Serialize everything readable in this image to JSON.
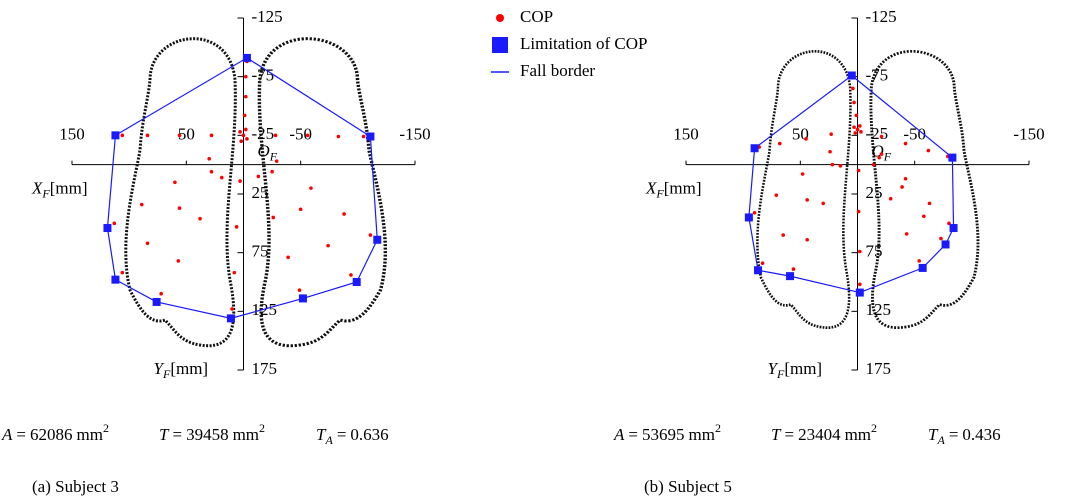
{
  "chart_data": [
    {
      "type": "scatter",
      "title": "(a) Subject 3",
      "x_label": {
        "symbol": "X",
        "sub": "F",
        "unit": "[mm]"
      },
      "y_label": {
        "symbol": "Y",
        "sub": "F",
        "unit": "[mm]"
      },
      "origin_label": {
        "symbol": "O",
        "sub": "F"
      },
      "xlim": [
        150,
        -150
      ],
      "xticks": [
        150,
        50,
        -50,
        -150
      ],
      "ylim": [
        -125,
        175
      ],
      "yticks": [
        -125,
        -75,
        -25,
        25,
        75,
        125,
        175
      ],
      "metrics": [
        {
          "symbol": "A",
          "equals": "=",
          "value": 62086,
          "unit": "mm",
          "power": "2"
        },
        {
          "symbol": "T",
          "equals": "=",
          "value": 39458,
          "unit": "mm",
          "power": "2"
        },
        {
          "symbol": "T",
          "sub": "A",
          "equals": "=",
          "value": 0.636
        }
      ],
      "series": [
        {
          "name": "COP",
          "kind": "dot",
          "color": "#ff0000",
          "x": [
            -1,
            -2,
            -2,
            -3,
            -28,
            -56,
            -83,
            -105,
            -29,
            -59,
            -88,
            -111,
            -25,
            -50,
            -74,
            -94,
            -13,
            -26,
            -39,
            -49,
            3,
            6,
            8,
            10,
            19,
            38,
            57,
            72,
            28,
            56,
            84,
            106,
            30,
            60,
            89,
            113,
            28,
            56,
            84,
            106,
            0,
            3,
            -3,
            2,
            -2
          ],
          "values": [
            -42,
            -58,
            -75,
            -88,
            -25,
            -25,
            -24,
            -24,
            -3,
            20,
            42,
            60,
            6,
            38,
            69,
            94,
            10,
            45,
            79,
            107,
            14,
            53,
            92,
            123,
            11,
            46,
            82,
            110,
            6,
            37,
            67,
            92,
            -5,
            15,
            34,
            50,
            -25,
            -25,
            -25,
            -25,
            -25,
            -28,
            -22,
            -20,
            -30
          ]
        },
        {
          "name": "Limitation of COP",
          "kind": "square",
          "color": "#1a1aff",
          "x": [
            -3,
            -111,
            -117,
            -99,
            -52,
            11,
            76,
            112,
            119,
            112
          ],
          "values": [
            -91,
            -24,
            64,
            100,
            114,
            131,
            117,
            98,
            54,
            -25
          ]
        },
        {
          "name": "Fall border",
          "kind": "polygon",
          "color": "#1a1aff",
          "x": [
            -3,
            -111,
            -117,
            -99,
            -52,
            11,
            76,
            112,
            119,
            112
          ],
          "values": [
            -91,
            -24,
            64,
            100,
            114,
            131,
            117,
            98,
            54,
            -25
          ]
        }
      ]
    },
    {
      "type": "scatter",
      "title": "(b) Subject 5",
      "x_label": {
        "symbol": "X",
        "sub": "F",
        "unit": "[mm]"
      },
      "y_label": {
        "symbol": "Y",
        "sub": "F",
        "unit": "[mm]"
      },
      "origin_label": {
        "symbol": "O",
        "sub": "F"
      },
      "xlim": [
        150,
        -150
      ],
      "xticks": [
        150,
        50,
        -50,
        -150
      ],
      "ylim": [
        -125,
        175
      ],
      "yticks": [
        -125,
        -75,
        -25,
        25,
        75,
        125,
        175
      ],
      "metrics": [
        {
          "symbol": "A",
          "equals": "=",
          "value": 53695,
          "unit": "mm",
          "power": "2"
        },
        {
          "symbol": "T",
          "equals": "=",
          "value": 23404,
          "unit": "mm",
          "power": "2"
        },
        {
          "symbol": "T",
          "sub": "A",
          "equals": "=",
          "value": 0.436
        }
      ],
      "series": [
        {
          "kind": "dot",
          "color": "#ff0000",
          "x": [
            1,
            3,
            4,
            5,
            -21,
            -42,
            -62,
            -79,
            -21,
            -42,
            -63,
            -80,
            -19,
            -39,
            -58,
            -73,
            -14,
            -29,
            -43,
            -54,
            -1,
            -1,
            -2,
            -2,
            15,
            30,
            44,
            56,
            22,
            44,
            65,
            83,
            24,
            48,
            71,
            90,
            23,
            45,
            68,
            86,
            0,
            3,
            -3,
            2,
            -2
          ],
          "values": [
            -42,
            -53,
            -65,
            -74,
            -24,
            -18,
            -12,
            -7,
            -9,
            12,
            33,
            50,
            -6,
            19,
            44,
            63,
            0,
            29,
            59,
            82,
            5,
            40,
            74,
            102,
            1,
            33,
            64,
            89,
            0,
            30,
            60,
            84,
            -11,
            8,
            26,
            41,
            -26,
            -22,
            -18,
            -15,
            -30,
            -32,
            -28,
            -27,
            -33
          ]
        },
        {
          "kind": "square",
          "color": "#1a1aff",
          "x": [
            5,
            -83,
            -84,
            -77,
            -57,
            -2,
            59,
            87,
            95,
            90
          ],
          "values": [
            -76,
            -6,
            54,
            68,
            88,
            109,
            95,
            90,
            45,
            -14
          ]
        },
        {
          "kind": "polygon",
          "color": "#1a1aff",
          "x": [
            5,
            -83,
            -84,
            -77,
            -57,
            -2,
            59,
            87,
            95,
            90
          ],
          "values": [
            -76,
            -6,
            54,
            68,
            88,
            109,
            95,
            90,
            45,
            -14
          ]
        }
      ]
    }
  ]
}
